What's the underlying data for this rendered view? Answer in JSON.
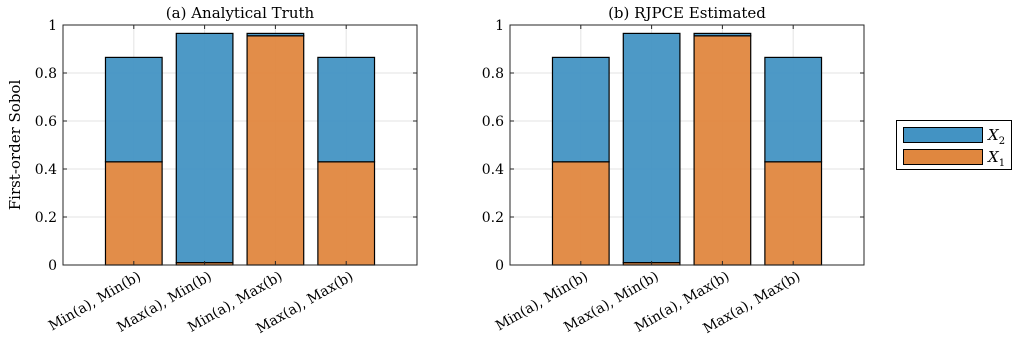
{
  "figure": {
    "ylabel": "First-order Sobol"
  },
  "legend": {
    "placement": "right",
    "entries": [
      {
        "symbol": "X",
        "subscript": "2",
        "color": "#4393c3"
      },
      {
        "symbol": "X",
        "subscript": "1",
        "color": "#e0873f"
      }
    ]
  },
  "chart_data": [
    {
      "type": "bar",
      "stacked": true,
      "title": "(a) Analytical Truth",
      "categories": [
        "Min(a), Min(b)",
        "Max(a), Min(b)",
        "Min(a), Max(b)",
        "Max(a), Max(b)"
      ],
      "series": [
        {
          "name": "X1",
          "color": "#e0873f",
          "values": [
            0.43,
            0.01,
            0.955,
            0.43
          ]
        },
        {
          "name": "X2",
          "color": "#4393c3",
          "values": [
            0.435,
            0.955,
            0.01,
            0.435
          ]
        }
      ],
      "ylim": [
        0,
        1
      ],
      "yticks": [
        "0",
        "0.2",
        "0.4",
        "0.6",
        "0.8",
        "1"
      ],
      "grid": true,
      "ylabel": "First-order Sobol"
    },
    {
      "type": "bar",
      "stacked": true,
      "title": "(b) RJPCE Estimated",
      "categories": [
        "Min(a), Min(b)",
        "Max(a), Min(b)",
        "Min(a), Max(b)",
        "Max(a), Max(b)"
      ],
      "series": [
        {
          "name": "X1",
          "color": "#e0873f",
          "values": [
            0.43,
            0.01,
            0.955,
            0.43
          ]
        },
        {
          "name": "X2",
          "color": "#4393c3",
          "values": [
            0.435,
            0.955,
            0.01,
            0.435
          ]
        }
      ],
      "ylim": [
        0,
        1
      ],
      "yticks": [
        "0",
        "0.2",
        "0.4",
        "0.6",
        "0.8",
        "1"
      ],
      "grid": true,
      "ylabel": ""
    }
  ]
}
